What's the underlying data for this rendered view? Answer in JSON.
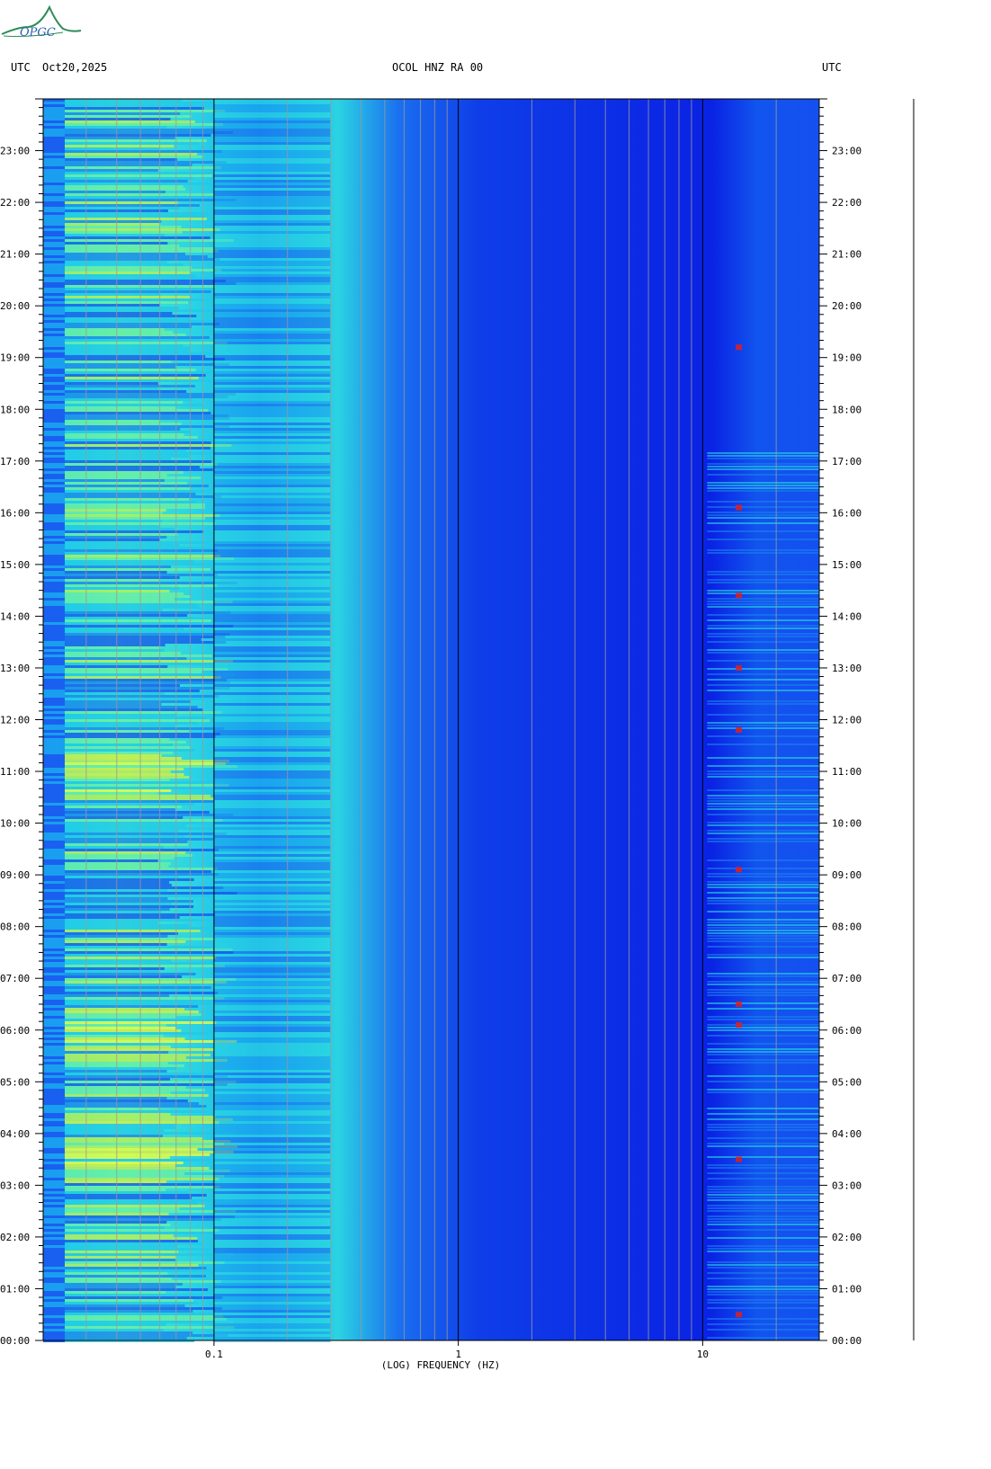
{
  "header": {
    "left_tz": "UTC",
    "date": "Oct20,2025",
    "station": "OCOL HNZ RA 00",
    "right_tz": "UTC"
  },
  "logo_text": "OPGC",
  "colors": {
    "background_low": "#0a1ee6",
    "mid": "#19e0e6",
    "high": "#ffff33",
    "peak": "#dd2020"
  },
  "chart_data": {
    "type": "heatmap",
    "title": "OCOL HNZ RA 00",
    "xlabel": "(LOG) FREQUENCY (HZ)",
    "ylabel": "UTC",
    "x_scale": "log",
    "xlim": [
      0.02,
      30
    ],
    "ylim": [
      "00:00",
      "24:00"
    ],
    "x_tick_labels": [
      "0.1",
      "1",
      "10"
    ],
    "y_tick_labels": [
      "00:00",
      "01:00",
      "02:00",
      "03:00",
      "04:00",
      "05:00",
      "06:00",
      "07:00",
      "08:00",
      "09:00",
      "10:00",
      "11:00",
      "12:00",
      "13:00",
      "14:00",
      "15:00",
      "16:00",
      "17:00",
      "18:00",
      "19:00",
      "20:00",
      "21:00",
      "22:00",
      "23:00"
    ],
    "high_noise_bands_hz": [
      0.02,
      0.3
    ],
    "activity_band_hz": [
      10,
      30
    ],
    "notable_hours_utc": [
      "03:30",
      "06:10",
      "11:00",
      "16:10"
    ]
  }
}
